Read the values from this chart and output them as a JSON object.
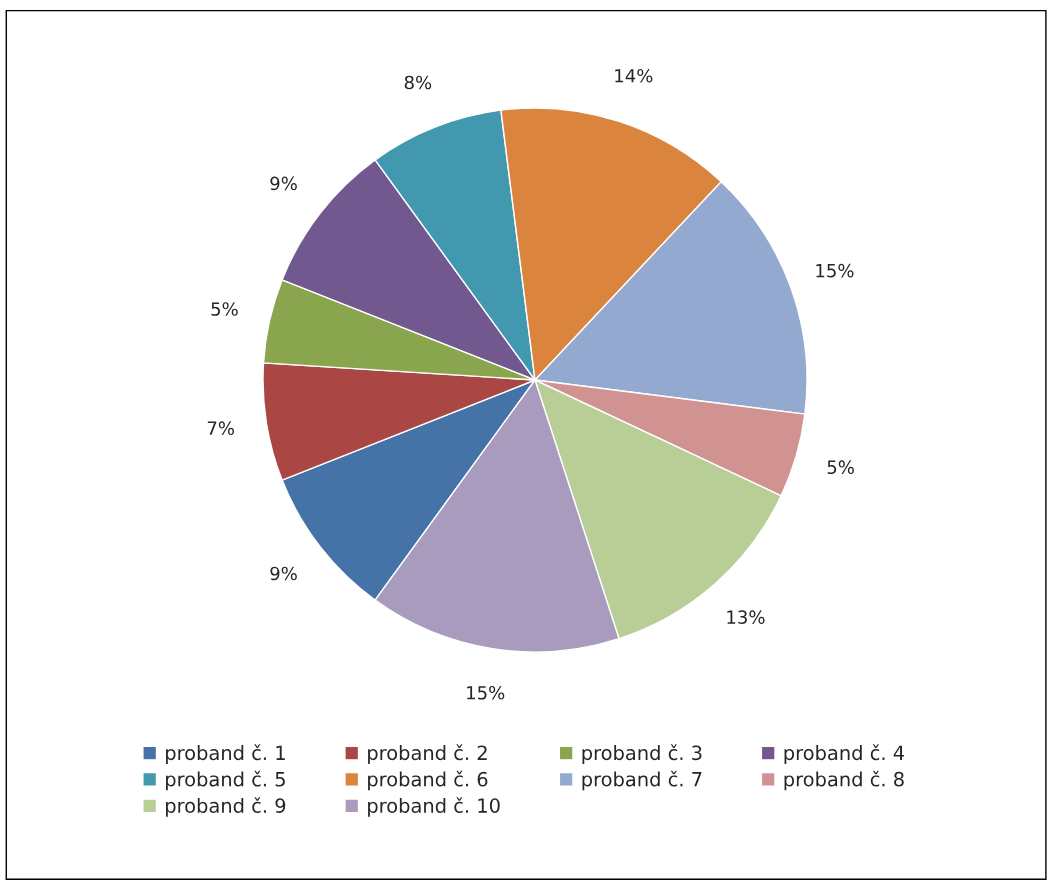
{
  "chart_data": {
    "type": "pie",
    "categories": [
      "proband č. 1",
      "proband č. 2",
      "proband č. 3",
      "proband č. 4",
      "proband č. 5",
      "proband č. 6",
      "proband č. 7",
      "proband č. 8",
      "proband č. 9",
      "proband č. 10"
    ],
    "values": [
      9,
      7,
      5,
      9,
      8,
      14,
      15,
      5,
      13,
      15
    ],
    "value_labels": [
      "9%",
      "7%",
      "5%",
      "9%",
      "8%",
      "14%",
      "15%",
      "5%",
      "13%",
      "15%"
    ],
    "colors": [
      "#4572a7",
      "#aa4643",
      "#89a54e",
      "#71588f",
      "#4198af",
      "#db843d",
      "#93a9cf",
      "#d19392",
      "#b9cd96",
      "#a99bbd"
    ],
    "legend": "bottom"
  }
}
